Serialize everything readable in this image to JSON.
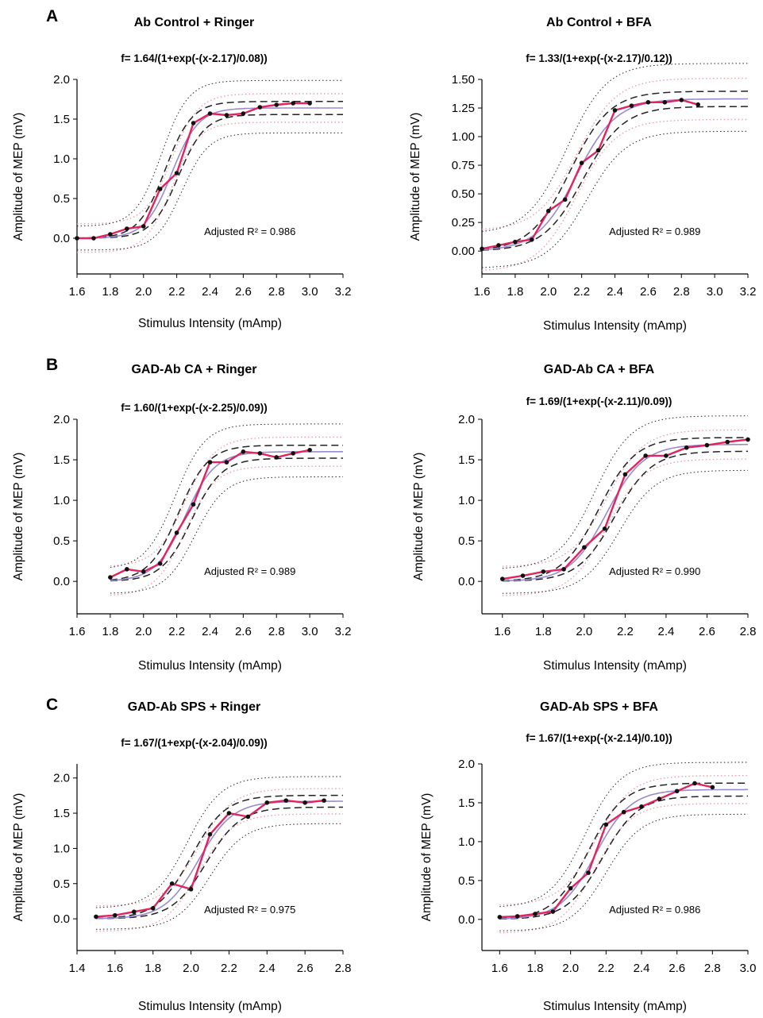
{
  "chart_data": [
    {
      "type": "line",
      "panel_letter": "A",
      "title": "Ab Control + Ringer",
      "formula": "f= 1.64/(1+exp(-(x-2.17)/0.08))",
      "xlabel": "Stimulus Intensity (mAmp)",
      "ylabel": "Amplitude of MEP (mV)",
      "xlim": [
        1.6,
        3.2
      ],
      "ylim": [
        -0.45,
        2.0
      ],
      "xticks": [
        "1.6",
        "1.8",
        "2.0",
        "2.2",
        "2.4",
        "2.6",
        "2.8",
        "3.0",
        "3.2"
      ],
      "yticks": [
        "0.0",
        "0.5",
        "1.0",
        "1.5",
        "2.0"
      ],
      "annotation": "Adjusted R² = 0.986",
      "fit": {
        "a": 1.64,
        "x0": 2.17,
        "b": 0.08
      },
      "series": [
        {
          "x": [
            1.6,
            1.7,
            1.8,
            1.9,
            2.0,
            2.1,
            2.2,
            2.3,
            2.4,
            2.5,
            2.6,
            2.7,
            2.8,
            2.9,
            3.0
          ],
          "y": [
            0.0,
            0.0,
            0.05,
            0.12,
            0.15,
            0.62,
            0.82,
            1.45,
            1.57,
            1.55,
            1.57,
            1.65,
            1.68,
            1.7,
            1.7
          ]
        }
      ],
      "colors": {
        "data": "#e0245e",
        "fit": "#9a8ad0",
        "bands": "#222222",
        "prediction": "#e6a0a8"
      }
    },
    {
      "type": "line",
      "title": "Ab Control + BFA",
      "formula": "f= 1.33/(1+exp(-(x-2.17)/0.12))",
      "xlabel": "Stimulus Intensity (mAmp)",
      "ylabel": "Amplitude of MEP (mV)",
      "xlim": [
        1.6,
        3.2
      ],
      "ylim": [
        -0.2,
        1.5
      ],
      "xticks": [
        "1.6",
        "1.8",
        "2.0",
        "2.2",
        "2.4",
        "2.6",
        "2.8",
        "3.0",
        "3.2"
      ],
      "yticks": [
        "0.00",
        "0.25",
        "0.50",
        "0.75",
        "1.00",
        "1.25",
        "1.50"
      ],
      "annotation": "Adjusted R² = 0.989",
      "fit": {
        "a": 1.33,
        "x0": 2.17,
        "b": 0.12
      },
      "series": [
        {
          "x": [
            1.6,
            1.7,
            1.8,
            1.9,
            2.0,
            2.1,
            2.2,
            2.3,
            2.4,
            2.5,
            2.6,
            2.7,
            2.8,
            2.9
          ],
          "y": [
            0.02,
            0.05,
            0.08,
            0.1,
            0.35,
            0.45,
            0.77,
            0.88,
            1.23,
            1.27,
            1.3,
            1.3,
            1.32,
            1.28
          ]
        }
      ],
      "colors": {
        "data": "#e0245e",
        "fit": "#9a8ad0",
        "bands": "#222222",
        "prediction": "#e6a0a8"
      }
    },
    {
      "type": "line",
      "panel_letter": "B",
      "title": "GAD-Ab CA + Ringer",
      "formula": "f= 1.60/(1+exp(-(x-2.25)/0.09))",
      "xlabel": "Stimulus Intensity (mAmp)",
      "ylabel": "Amplitude of MEP (mV)",
      "xlim": [
        1.6,
        3.2
      ],
      "ylim": [
        -0.4,
        2.0
      ],
      "xticks": [
        "1.6",
        "1.8",
        "2.0",
        "2.2",
        "2.4",
        "2.6",
        "2.8",
        "3.0",
        "3.2"
      ],
      "yticks": [
        "0.0",
        "0.5",
        "1.0",
        "1.5",
        "2.0"
      ],
      "annotation": "Adjusted R² = 0.989",
      "fit": {
        "a": 1.6,
        "x0": 2.25,
        "b": 0.09
      },
      "series": [
        {
          "x": [
            1.8,
            1.9,
            2.0,
            2.1,
            2.2,
            2.3,
            2.4,
            2.5,
            2.6,
            2.7,
            2.8,
            2.9,
            3.0
          ],
          "y": [
            0.05,
            0.15,
            0.12,
            0.22,
            0.6,
            0.95,
            1.47,
            1.47,
            1.6,
            1.58,
            1.53,
            1.58,
            1.62
          ]
        }
      ],
      "colors": {
        "data": "#e0245e",
        "fit": "#9a8ad0",
        "bands": "#222222",
        "prediction": "#e6a0a8"
      }
    },
    {
      "type": "line",
      "title": "GAD-Ab CA + BFA",
      "formula": "f= 1.69/(1+exp(-(x-2.11)/0.09))",
      "xlabel": "Stimulus Intensity (mAmp)",
      "ylabel": "Amplitude of MEP (mV)",
      "xlim": [
        1.5,
        2.8
      ],
      "ylim": [
        -0.4,
        2.0
      ],
      "xticks": [
        "1.6",
        "1.8",
        "2.0",
        "2.2",
        "2.4",
        "2.6",
        "2.8"
      ],
      "yticks": [
        "0.0",
        "0.5",
        "1.0",
        "1.5",
        "2.0"
      ],
      "annotation": "Adjusted R² = 0.990",
      "fit": {
        "a": 1.69,
        "x0": 2.11,
        "b": 0.09
      },
      "series": [
        {
          "x": [
            1.6,
            1.7,
            1.8,
            1.9,
            2.0,
            2.1,
            2.2,
            2.3,
            2.4,
            2.5,
            2.6,
            2.7,
            2.8
          ],
          "y": [
            0.03,
            0.07,
            0.12,
            0.15,
            0.42,
            0.65,
            1.32,
            1.55,
            1.55,
            1.65,
            1.68,
            1.72,
            1.75
          ]
        }
      ],
      "colors": {
        "data": "#e0245e",
        "fit": "#9a8ad0",
        "bands": "#222222",
        "prediction": "#e6a0a8"
      }
    },
    {
      "type": "line",
      "panel_letter": "C",
      "title": "GAD-Ab SPS + Ringer",
      "formula": "f= 1.67/(1+exp(-(x-2.04)/0.09))",
      "xlabel": "Stimulus Intensity (mAmp)",
      "ylabel": "Amplitude of MEP (mV)",
      "xlim": [
        1.4,
        2.8
      ],
      "ylim": [
        -0.45,
        2.2
      ],
      "xticks": [
        "1.4",
        "1.6",
        "1.8",
        "2.0",
        "2.2",
        "2.4",
        "2.6",
        "2.8"
      ],
      "yticks": [
        "0.0",
        "0.5",
        "1.0",
        "1.5",
        "2.0"
      ],
      "annotation": "Adjusted R² = 0.975",
      "fit": {
        "a": 1.67,
        "x0": 2.04,
        "b": 0.09
      },
      "series": [
        {
          "x": [
            1.5,
            1.6,
            1.7,
            1.8,
            1.9,
            2.0,
            2.1,
            2.2,
            2.3,
            2.4,
            2.5,
            2.6,
            2.7
          ],
          "y": [
            0.03,
            0.05,
            0.1,
            0.15,
            0.5,
            0.42,
            1.2,
            1.5,
            1.45,
            1.65,
            1.68,
            1.65,
            1.68
          ]
        }
      ],
      "colors": {
        "data": "#e0245e",
        "fit": "#9a8ad0",
        "bands": "#222222",
        "prediction": "#e6a0a8"
      }
    },
    {
      "type": "line",
      "title": "GAD-Ab SPS + BFA",
      "formula": "f= 1.67/(1+exp(-(x-2.14)/0.10))",
      "xlabel": "Stimulus Intensity (mAmp)",
      "ylabel": "Amplitude of MEP (mV)",
      "xlim": [
        1.5,
        3.0
      ],
      "ylim": [
        -0.4,
        2.0
      ],
      "xticks": [
        "1.6",
        "1.8",
        "2.0",
        "2.2",
        "2.4",
        "2.6",
        "2.8",
        "3.0"
      ],
      "yticks": [
        "0.0",
        "0.5",
        "1.0",
        "1.5",
        "2.0"
      ],
      "annotation": "Adjusted R² = 0.986",
      "fit": {
        "a": 1.67,
        "x0": 2.14,
        "b": 0.1
      },
      "series": [
        {
          "x": [
            1.6,
            1.7,
            1.8,
            1.9,
            2.0,
            2.1,
            2.2,
            2.3,
            2.4,
            2.5,
            2.6,
            2.7,
            2.8
          ],
          "y": [
            0.03,
            0.04,
            0.07,
            0.1,
            0.4,
            0.6,
            1.22,
            1.38,
            1.45,
            1.55,
            1.65,
            1.75,
            1.7
          ]
        }
      ],
      "colors": {
        "data": "#e0245e",
        "fit": "#9a8ad0",
        "bands": "#222222",
        "prediction": "#e6a0a8"
      }
    }
  ]
}
